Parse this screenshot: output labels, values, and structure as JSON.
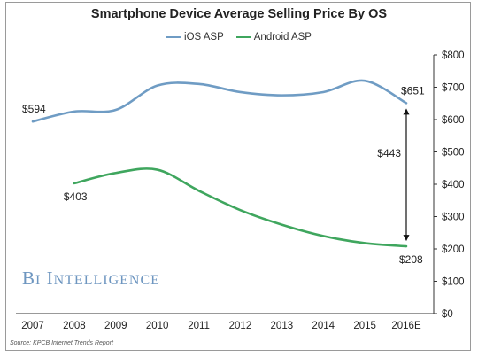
{
  "watermark": "BI Intelligence",
  "source": "Source: KPCB Internet Trends Report",
  "colors": {
    "ios": "#6f9cc4",
    "android": "#3fa65e",
    "arrow": "#111111",
    "text": "#222222"
  },
  "chart_data": {
    "type": "line",
    "title": "Smartphone Device Average Selling Price By OS",
    "xlabel": "",
    "ylabel": "",
    "categories": [
      "2007",
      "2008",
      "2009",
      "2010",
      "2011",
      "2012",
      "2013",
      "2014",
      "2015",
      "2016E"
    ],
    "ylim": [
      0,
      800
    ],
    "yticks": [
      "$0",
      "$100",
      "$200",
      "$300",
      "$400",
      "$500",
      "$600",
      "$700",
      "$800"
    ],
    "y_axis_side": "right",
    "legend_position": "top",
    "grid": false,
    "series": [
      {
        "name": "iOS ASP",
        "values": [
          594,
          625,
          630,
          705,
          710,
          685,
          675,
          685,
          720,
          651
        ]
      },
      {
        "name": "Android ASP",
        "values": [
          null,
          403,
          435,
          445,
          380,
          320,
          275,
          240,
          218,
          208
        ]
      }
    ],
    "annotations": [
      {
        "text": "$594",
        "series": 0,
        "index": 0
      },
      {
        "text": "$651",
        "series": 0,
        "index": 9
      },
      {
        "text": "$403",
        "series": 1,
        "index": 1
      },
      {
        "text": "$208",
        "series": 1,
        "index": 9
      },
      {
        "text": "$443",
        "type": "difference",
        "from": 208,
        "to": 651
      }
    ]
  }
}
